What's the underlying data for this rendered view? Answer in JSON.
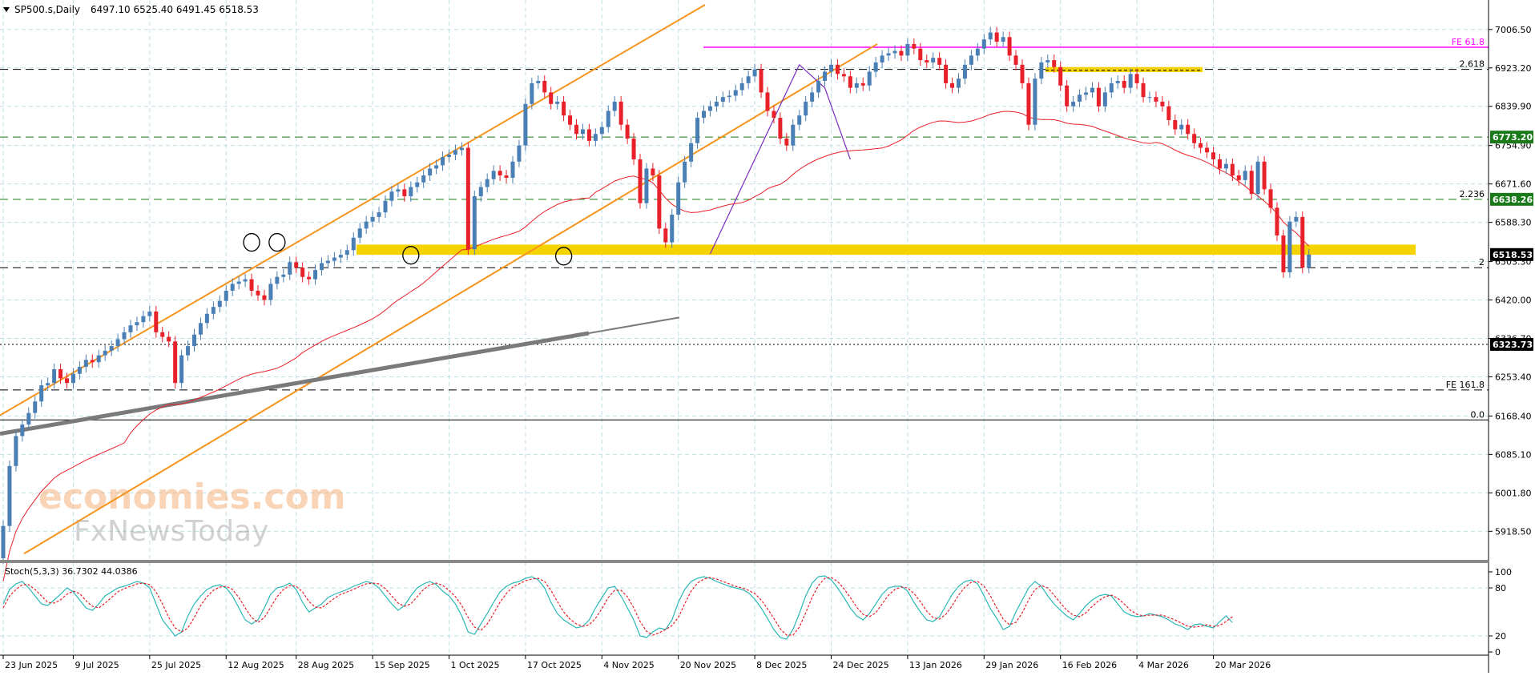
{
  "header": {
    "symbol": "SP500.s,Daily",
    "ohlc": "6497.10 6525.40 6491.45 6518.53"
  },
  "watermark": {
    "line1": "economies.com",
    "line2": "FxNewsToday"
  },
  "colors": {
    "bull": "#4a7fb5",
    "bear": "#e8202a",
    "grid": "#bfe0e6",
    "channel": "#f7941d",
    "ma": "#e8202a",
    "trend": "#7a7a7a",
    "zone": "#f5d300",
    "fe": "#ff00ff",
    "stoch_main": "#2ab7b7",
    "stoch_signal": "#e8202a",
    "level_green": "#1a7a1a"
  },
  "chart_data": [
    {
      "type": "candlestick",
      "title": "SP500.s,Daily",
      "ylim": [
        5860,
        7060
      ],
      "y_ticks": [
        "5918.50",
        "6001.80",
        "6085.10",
        "6168.40",
        "6253.40",
        "6336.70",
        "6420.00",
        "6503.30",
        "6588.30",
        "6671.60",
        "6754.90",
        "6839.90",
        "6923.20",
        "7006.50"
      ],
      "x_ticks": [
        "23 Jun 2025",
        "9 Jul 2025",
        "25 Jul 2025",
        "12 Aug 2025",
        "28 Aug 2025",
        "15 Sep 2025",
        "1 Oct 2025",
        "17 Oct 2025",
        "4 Nov 2025",
        "20 Nov 2025",
        "8 Dec 2025",
        "24 Dec 2025",
        "13 Jan 2026",
        "29 Jan 2026",
        "16 Feb 2026",
        "4 Mar 2026",
        "20 Mar 2026"
      ],
      "x_tick_index": [
        0,
        11,
        23,
        35,
        46,
        58,
        70,
        82,
        94,
        106,
        118,
        130,
        142,
        154,
        166,
        178,
        190
      ],
      "close": [
        5930,
        6060,
        6125,
        6150,
        6175,
        6200,
        6235,
        6240,
        6270,
        6250,
        6240,
        6260,
        6275,
        6290,
        6285,
        6300,
        6310,
        6320,
        6335,
        6350,
        6365,
        6372,
        6385,
        6395,
        6350,
        6340,
        6330,
        6240,
        6300,
        6320,
        6345,
        6370,
        6390,
        6405,
        6418,
        6440,
        6455,
        6460,
        6465,
        6440,
        6430,
        6420,
        6455,
        6470,
        6475,
        6502,
        6490,
        6470,
        6465,
        6485,
        6500,
        6505,
        6512,
        6518,
        6528,
        6555,
        6575,
        6590,
        6600,
        6610,
        6635,
        6655,
        6660,
        6645,
        6665,
        6675,
        6690,
        6705,
        6712,
        6730,
        6735,
        6745,
        6750,
        6530,
        6645,
        6665,
        6682,
        6700,
        6690,
        6685,
        6720,
        6755,
        6845,
        6890,
        6895,
        6870,
        6845,
        6850,
        6820,
        6800,
        6780,
        6790,
        6765,
        6780,
        6795,
        6830,
        6850,
        6800,
        6770,
        6725,
        6630,
        6705,
        6690,
        6575,
        6545,
        6605,
        6675,
        6720,
        6760,
        6815,
        6830,
        6840,
        6850,
        6860,
        6863,
        6875,
        6890,
        6905,
        6920,
        6870,
        6830,
        6815,
        6770,
        6755,
        6800,
        6820,
        6850,
        6870,
        6895,
        6915,
        6930,
        6910,
        6905,
        6880,
        6890,
        6885,
        6915,
        6935,
        6950,
        6955,
        6960,
        6950,
        6975,
        6965,
        6940,
        6935,
        6945,
        6930,
        6890,
        6880,
        6900,
        6930,
        6950,
        6965,
        6985,
        7000,
        6980,
        6990,
        6950,
        6930,
        6890,
        6800,
        6900,
        6935,
        6940,
        6925,
        6885,
        6840,
        6850,
        6865,
        6870,
        6880,
        6840,
        6870,
        6890,
        6895,
        6880,
        6910,
        6890,
        6860,
        6860,
        6850,
        6840,
        6810,
        6790,
        6800,
        6780,
        6760,
        6750,
        6740,
        6725,
        6705,
        6715,
        6690,
        6680,
        6700,
        6650,
        6720,
        6660,
        6620,
        6560,
        6480,
        6590,
        6600,
        6490,
        6518.53
      ]
    },
    {
      "type": "line",
      "title": "Stoch(5,3,3) 36.7302 44.0386",
      "ylim": [
        0,
        100
      ],
      "y_ticks": [
        "100",
        "80",
        "20",
        "0"
      ],
      "series": [
        {
          "values": [
            60,
            78,
            85,
            88,
            80,
            70,
            60,
            58,
            65,
            72,
            80,
            75,
            65,
            55,
            52,
            60,
            70,
            75,
            80,
            82,
            85,
            88,
            86,
            80,
            60,
            40,
            30,
            20,
            25,
            45,
            60,
            70,
            78,
            82,
            84,
            80,
            70,
            55,
            40,
            35,
            40,
            55,
            72,
            80,
            82,
            86,
            78,
            62,
            50,
            55,
            60,
            68,
            72,
            75,
            78,
            82,
            85,
            88,
            86,
            80,
            70,
            60,
            52,
            58,
            70,
            80,
            85,
            88,
            84,
            76,
            70,
            60,
            45,
            25,
            22,
            35,
            48,
            62,
            75,
            82,
            86,
            88,
            92,
            94,
            90,
            80,
            62,
            48,
            40,
            35,
            30,
            32,
            40,
            55,
            68,
            80,
            82,
            70,
            55,
            40,
            20,
            18,
            25,
            30,
            28,
            40,
            62,
            78,
            88,
            92,
            94,
            92,
            88,
            85,
            82,
            80,
            78,
            74,
            66,
            55,
            42,
            28,
            18,
            16,
            28,
            48,
            70,
            86,
            94,
            95,
            90,
            80,
            68,
            55,
            45,
            40,
            48,
            60,
            72,
            80,
            82,
            82,
            76,
            62,
            50,
            40,
            38,
            44,
            58,
            72,
            82,
            88,
            90,
            85,
            70,
            54,
            42,
            28,
            32,
            50,
            65,
            80,
            88,
            82,
            70,
            60,
            52,
            45,
            40,
            48,
            58,
            65,
            70,
            72,
            70,
            60,
            50,
            46,
            44,
            45,
            48,
            46,
            44,
            40,
            35,
            32,
            28,
            34,
            35,
            32,
            30,
            38,
            45,
            36.7302
          ]
        },
        {
          "values": [
            55,
            70,
            78,
            84,
            84,
            78,
            70,
            62,
            61,
            65,
            72,
            76,
            73,
            64,
            57,
            55,
            61,
            68,
            75,
            79,
            82,
            85,
            86,
            84,
            75,
            60,
            43,
            30,
            25,
            30,
            43,
            58,
            69,
            77,
            81,
            82,
            78,
            68,
            55,
            43,
            37,
            43,
            56,
            69,
            78,
            83,
            82,
            75,
            63,
            56,
            55,
            61,
            67,
            72,
            75,
            78,
            82,
            85,
            86,
            85,
            79,
            70,
            61,
            57,
            60,
            69,
            78,
            84,
            86,
            83,
            77,
            69,
            58,
            43,
            31,
            27,
            35,
            48,
            62,
            73,
            81,
            85,
            89,
            91,
            92,
            88,
            77,
            63,
            50,
            41,
            35,
            32,
            34,
            42,
            54,
            68,
            77,
            77,
            69,
            55,
            38,
            26,
            21,
            24,
            28,
            33,
            43,
            60,
            76,
            86,
            91,
            93,
            91,
            88,
            85,
            82,
            80,
            77,
            73,
            65,
            54,
            42,
            29,
            21,
            21,
            31,
            49,
            68,
            83,
            92,
            93,
            88,
            79,
            68,
            56,
            47,
            44,
            49,
            60,
            71,
            78,
            81,
            80,
            73,
            63,
            51,
            43,
            41,
            47,
            58,
            71,
            81,
            87,
            88,
            82,
            70,
            55,
            41,
            34,
            37,
            49,
            65,
            78,
            83,
            80,
            71,
            61,
            52,
            46,
            44,
            49,
            57,
            64,
            69,
            71,
            67,
            60,
            52,
            47,
            45,
            46,
            46,
            46,
            43,
            40,
            36,
            32,
            31,
            32,
            34,
            32,
            33,
            38,
            44.0386
          ]
        }
      ]
    }
  ],
  "levels": {
    "fe_618": "FE 61.8",
    "fib_2618": "2.618",
    "green_upper": "6773.20",
    "fib_2236": "2.236",
    "green_lower": "6638.26",
    "price_now": "6518.53",
    "fib_2": "2",
    "dotted": "6323.73",
    "fe_1618": "FE 161.8",
    "fib_0": "0.0"
  }
}
